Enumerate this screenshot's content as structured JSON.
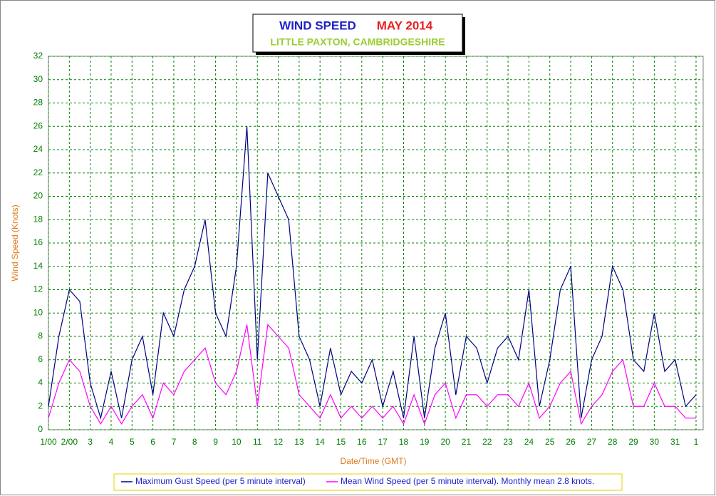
{
  "chart_data": {
    "type": "line",
    "title": "WIND SPEED",
    "title_period": "MAY 2014",
    "subtitle": "LITTLE PAXTON, CAMBRIDGESHIRE",
    "x_label": "Date/Time (GMT)",
    "y_label": "Wind Speed (Knots)",
    "grid": true,
    "legend": "bottom",
    "xlim": [
      0,
      31
    ],
    "ylim": [
      0,
      32
    ],
    "yticks": [
      0,
      2,
      4,
      6,
      8,
      10,
      12,
      14,
      16,
      18,
      20,
      22,
      24,
      26,
      28,
      30,
      32
    ],
    "xticks": [
      {
        "value": 0,
        "label": "1/00"
      },
      {
        "value": 1,
        "label": "2/00"
      },
      {
        "value": 2,
        "label": "3"
      },
      {
        "value": 3,
        "label": "4"
      },
      {
        "value": 4,
        "label": "5"
      },
      {
        "value": 5,
        "label": "6"
      },
      {
        "value": 6,
        "label": "7"
      },
      {
        "value": 7,
        "label": "8"
      },
      {
        "value": 8,
        "label": "9"
      },
      {
        "value": 9,
        "label": "10"
      },
      {
        "value": 10,
        "label": "11"
      },
      {
        "value": 11,
        "label": "12"
      },
      {
        "value": 12,
        "label": "13"
      },
      {
        "value": 13,
        "label": "14"
      },
      {
        "value": 14,
        "label": "15"
      },
      {
        "value": 15,
        "label": "16"
      },
      {
        "value": 16,
        "label": "17"
      },
      {
        "value": 17,
        "label": "18"
      },
      {
        "value": 18,
        "label": "19"
      },
      {
        "value": 19,
        "label": "20"
      },
      {
        "value": 20,
        "label": "21"
      },
      {
        "value": 21,
        "label": "22"
      },
      {
        "value": 22,
        "label": "23"
      },
      {
        "value": 23,
        "label": "24"
      },
      {
        "value": 24,
        "label": "25"
      },
      {
        "value": 25,
        "label": "26"
      },
      {
        "value": 26,
        "label": "27"
      },
      {
        "value": 27,
        "label": "28"
      },
      {
        "value": 28,
        "label": "29"
      },
      {
        "value": 29,
        "label": "30"
      },
      {
        "value": 30,
        "label": "31"
      },
      {
        "value": 31,
        "label": "1"
      }
    ],
    "x": [
      0,
      0.5,
      1,
      1.5,
      2,
      2.5,
      3,
      3.5,
      4,
      4.5,
      5,
      5.5,
      6,
      6.5,
      7,
      7.5,
      8,
      8.5,
      9,
      9.5,
      10,
      10.5,
      11,
      11.5,
      12,
      12.5,
      13,
      13.5,
      14,
      14.5,
      15,
      15.5,
      16,
      16.5,
      17,
      17.5,
      18,
      18.5,
      19,
      19.5,
      20,
      20.5,
      21,
      21.5,
      22,
      22.5,
      23,
      23.5,
      24,
      24.5,
      25,
      25.5,
      26,
      26.5,
      27,
      27.5,
      28,
      28.5,
      29,
      29.5,
      30,
      30.5,
      31
    ],
    "series": [
      {
        "name": "Maximum Gust Speed (per 5 minute interval)",
        "color": "#000080",
        "values": [
          2,
          8,
          12,
          11,
          4,
          1,
          5,
          1,
          6,
          8,
          3,
          10,
          8,
          12,
          14,
          18,
          10,
          8,
          14,
          26,
          6,
          22,
          20,
          18,
          8,
          6,
          2,
          7,
          3,
          5,
          4,
          6,
          2,
          5,
          1,
          8,
          1,
          7,
          10,
          3,
          8,
          7,
          4,
          7,
          8,
          6,
          12,
          2,
          6,
          12,
          14,
          1,
          6,
          8,
          14,
          12,
          6,
          5,
          10,
          5,
          6,
          2,
          3
        ]
      },
      {
        "name": "Mean Wind Speed (per 5 minute interval). Monthly mean 2.8 knots.",
        "color": "#ff00ff",
        "values": [
          1,
          4,
          6,
          5,
          2,
          0.5,
          2,
          0.5,
          2,
          3,
          1,
          4,
          3,
          5,
          6,
          7,
          4,
          3,
          5,
          9,
          2,
          9,
          8,
          7,
          3,
          2,
          1,
          3,
          1,
          2,
          1,
          2,
          1,
          2,
          0.5,
          3,
          0.5,
          3,
          4,
          1,
          3,
          3,
          2,
          3,
          3,
          2,
          4,
          1,
          2,
          4,
          5,
          0.5,
          2,
          3,
          5,
          6,
          2,
          2,
          4,
          2,
          2,
          1,
          1
        ]
      }
    ]
  }
}
